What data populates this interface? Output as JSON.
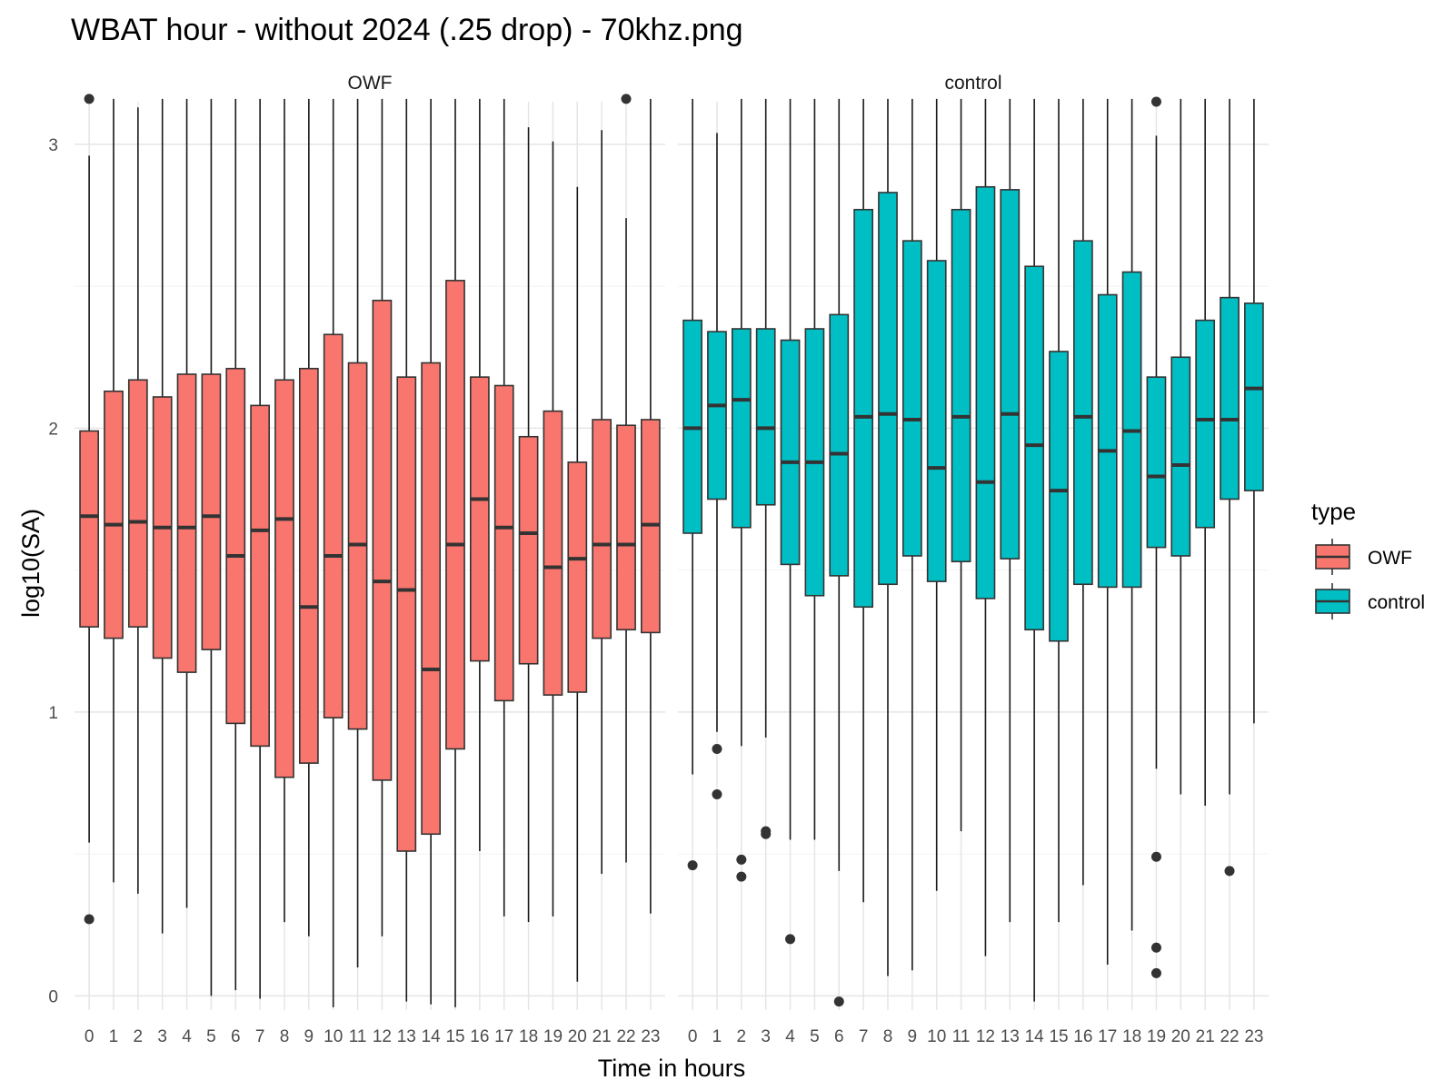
{
  "chart_data": {
    "type": "boxplot",
    "title": "WBAT hour - without 2024 (.25 drop) - 70khz.png",
    "xlabel": "Time in hours",
    "ylabel": "log10(SA)",
    "ylim": [
      -0.05,
      3.15
    ],
    "yticks": [
      0,
      1,
      2,
      3
    ],
    "grid": true,
    "categories": [
      "0",
      "1",
      "2",
      "3",
      "4",
      "5",
      "6",
      "7",
      "8",
      "9",
      "10",
      "11",
      "12",
      "13",
      "14",
      "15",
      "16",
      "17",
      "18",
      "19",
      "20",
      "21",
      "22",
      "23"
    ],
    "legend": {
      "title": "type",
      "position": "right",
      "entries": [
        "OWF",
        "control"
      ]
    },
    "colors": {
      "OWF": "#F8766D",
      "control": "#00BFC4"
    },
    "panels": [
      {
        "name": "OWF",
        "boxes": [
          {
            "q1": 1.3,
            "median": 1.69,
            "q3": 1.99,
            "wlow": 0.54,
            "whigh": 2.96,
            "outliers": [
              0.27,
              3.16
            ]
          },
          {
            "q1": 1.26,
            "median": 1.66,
            "q3": 2.13,
            "wlow": 0.4,
            "whigh": 3.16,
            "outliers": []
          },
          {
            "q1": 1.3,
            "median": 1.67,
            "q3": 2.17,
            "wlow": 0.36,
            "whigh": 3.13,
            "outliers": []
          },
          {
            "q1": 1.19,
            "median": 1.65,
            "q3": 2.11,
            "wlow": 0.22,
            "whigh": 3.16,
            "outliers": []
          },
          {
            "q1": 1.14,
            "median": 1.65,
            "q3": 2.19,
            "wlow": 0.31,
            "whigh": 3.16,
            "outliers": []
          },
          {
            "q1": 1.22,
            "median": 1.69,
            "q3": 2.19,
            "wlow": 0.0,
            "whigh": 3.16,
            "outliers": []
          },
          {
            "q1": 0.96,
            "median": 1.55,
            "q3": 2.21,
            "wlow": 0.02,
            "whigh": 3.16,
            "outliers": []
          },
          {
            "q1": 0.88,
            "median": 1.64,
            "q3": 2.08,
            "wlow": -0.01,
            "whigh": 3.16,
            "outliers": []
          },
          {
            "q1": 0.77,
            "median": 1.68,
            "q3": 2.17,
            "wlow": 0.26,
            "whigh": 3.16,
            "outliers": []
          },
          {
            "q1": 0.82,
            "median": 1.37,
            "q3": 2.21,
            "wlow": 0.21,
            "whigh": 3.16,
            "outliers": []
          },
          {
            "q1": 0.98,
            "median": 1.55,
            "q3": 2.33,
            "wlow": -0.04,
            "whigh": 3.16,
            "outliers": []
          },
          {
            "q1": 0.94,
            "median": 1.59,
            "q3": 2.23,
            "wlow": 0.1,
            "whigh": 3.16,
            "outliers": []
          },
          {
            "q1": 0.76,
            "median": 1.46,
            "q3": 2.45,
            "wlow": 0.21,
            "whigh": 3.16,
            "outliers": []
          },
          {
            "q1": 0.51,
            "median": 1.43,
            "q3": 2.18,
            "wlow": -0.02,
            "whigh": 3.16,
            "outliers": []
          },
          {
            "q1": 0.57,
            "median": 1.15,
            "q3": 2.23,
            "wlow": -0.03,
            "whigh": 3.16,
            "outliers": []
          },
          {
            "q1": 0.87,
            "median": 1.59,
            "q3": 2.52,
            "wlow": -0.04,
            "whigh": 3.16,
            "outliers": []
          },
          {
            "q1": 1.18,
            "median": 1.75,
            "q3": 2.18,
            "wlow": 0.51,
            "whigh": 3.16,
            "outliers": []
          },
          {
            "q1": 1.04,
            "median": 1.65,
            "q3": 2.15,
            "wlow": 0.28,
            "whigh": 3.16,
            "outliers": []
          },
          {
            "q1": 1.17,
            "median": 1.63,
            "q3": 1.97,
            "wlow": 0.26,
            "whigh": 3.06,
            "outliers": []
          },
          {
            "q1": 1.06,
            "median": 1.51,
            "q3": 2.06,
            "wlow": 0.28,
            "whigh": 3.01,
            "outliers": []
          },
          {
            "q1": 1.07,
            "median": 1.54,
            "q3": 1.88,
            "wlow": 0.05,
            "whigh": 2.85,
            "outliers": []
          },
          {
            "q1": 1.26,
            "median": 1.59,
            "q3": 2.03,
            "wlow": 0.43,
            "whigh": 3.05,
            "outliers": []
          },
          {
            "q1": 1.29,
            "median": 1.59,
            "q3": 2.01,
            "wlow": 0.47,
            "whigh": 2.74,
            "outliers": [
              3.16
            ]
          },
          {
            "q1": 1.28,
            "median": 1.66,
            "q3": 2.03,
            "wlow": 0.29,
            "whigh": 3.16,
            "outliers": []
          }
        ]
      },
      {
        "name": "control",
        "boxes": [
          {
            "q1": 1.63,
            "median": 2.0,
            "q3": 2.38,
            "wlow": 0.78,
            "whigh": 3.16,
            "outliers": [
              0.46
            ]
          },
          {
            "q1": 1.75,
            "median": 2.08,
            "q3": 2.34,
            "wlow": 0.93,
            "whigh": 3.04,
            "outliers": [
              0.87,
              0.71
            ]
          },
          {
            "q1": 1.65,
            "median": 2.1,
            "q3": 2.35,
            "wlow": 0.88,
            "whigh": 3.16,
            "outliers": [
              0.48,
              0.42
            ]
          },
          {
            "q1": 1.73,
            "median": 2.0,
            "q3": 2.35,
            "wlow": 0.91,
            "whigh": 3.16,
            "outliers": [
              0.58,
              0.57
            ]
          },
          {
            "q1": 1.52,
            "median": 1.88,
            "q3": 2.31,
            "wlow": 0.55,
            "whigh": 3.16,
            "outliers": [
              0.2
            ]
          },
          {
            "q1": 1.41,
            "median": 1.88,
            "q3": 2.35,
            "wlow": 0.55,
            "whigh": 3.16,
            "outliers": []
          },
          {
            "q1": 1.48,
            "median": 1.91,
            "q3": 2.4,
            "wlow": 0.44,
            "whigh": 3.16,
            "outliers": [
              -0.02
            ]
          },
          {
            "q1": 1.37,
            "median": 2.04,
            "q3": 2.77,
            "wlow": 0.33,
            "whigh": 3.16,
            "outliers": []
          },
          {
            "q1": 1.45,
            "median": 2.05,
            "q3": 2.83,
            "wlow": 0.07,
            "whigh": 3.16,
            "outliers": []
          },
          {
            "q1": 1.55,
            "median": 2.03,
            "q3": 2.66,
            "wlow": 0.09,
            "whigh": 3.16,
            "outliers": []
          },
          {
            "q1": 1.46,
            "median": 1.86,
            "q3": 2.59,
            "wlow": 0.37,
            "whigh": 3.16,
            "outliers": []
          },
          {
            "q1": 1.53,
            "median": 2.04,
            "q3": 2.77,
            "wlow": 0.58,
            "whigh": 3.16,
            "outliers": []
          },
          {
            "q1": 1.4,
            "median": 1.81,
            "q3": 2.85,
            "wlow": 0.14,
            "whigh": 3.16,
            "outliers": []
          },
          {
            "q1": 1.54,
            "median": 2.05,
            "q3": 2.84,
            "wlow": 0.26,
            "whigh": 3.16,
            "outliers": []
          },
          {
            "q1": 1.29,
            "median": 1.94,
            "q3": 2.57,
            "wlow": -0.02,
            "whigh": 3.16,
            "outliers": []
          },
          {
            "q1": 1.25,
            "median": 1.78,
            "q3": 2.27,
            "wlow": 0.26,
            "whigh": 3.16,
            "outliers": []
          },
          {
            "q1": 1.45,
            "median": 2.04,
            "q3": 2.66,
            "wlow": 0.39,
            "whigh": 3.16,
            "outliers": []
          },
          {
            "q1": 1.44,
            "median": 1.92,
            "q3": 2.47,
            "wlow": 0.11,
            "whigh": 3.16,
            "outliers": []
          },
          {
            "q1": 1.44,
            "median": 1.99,
            "q3": 2.55,
            "wlow": 0.23,
            "whigh": 3.16,
            "outliers": []
          },
          {
            "q1": 1.58,
            "median": 1.83,
            "q3": 2.18,
            "wlow": 0.8,
            "whigh": 3.03,
            "outliers": [
              3.15,
              0.49,
              0.17,
              0.08
            ]
          },
          {
            "q1": 1.55,
            "median": 1.87,
            "q3": 2.25,
            "wlow": 0.71,
            "whigh": 3.16,
            "outliers": []
          },
          {
            "q1": 1.65,
            "median": 2.03,
            "q3": 2.38,
            "wlow": 0.67,
            "whigh": 3.16,
            "outliers": []
          },
          {
            "q1": 1.75,
            "median": 2.03,
            "q3": 2.46,
            "wlow": 0.71,
            "whigh": 3.16,
            "outliers": [
              0.44
            ]
          },
          {
            "q1": 1.78,
            "median": 2.14,
            "q3": 2.44,
            "wlow": 0.96,
            "whigh": 3.16,
            "outliers": []
          }
        ]
      }
    ]
  }
}
